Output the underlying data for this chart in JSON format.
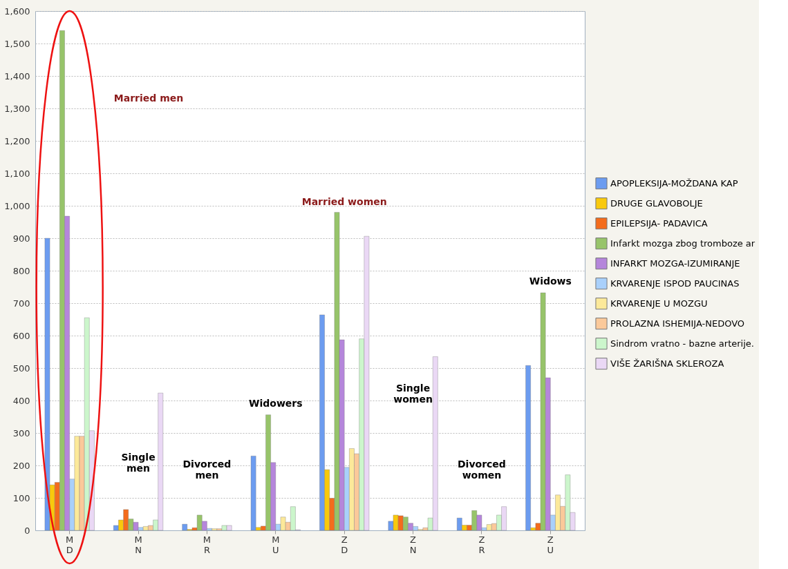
{
  "chart_data": {
    "type": "bar",
    "categories": [
      "M\nD",
      "M\nN",
      "M\nR",
      "M\nU",
      "Z\nD",
      "Z\nN",
      "Z\nR",
      "Z\nU"
    ],
    "series": [
      {
        "name": "APOPLEKSIJA-MOŽDANA  KAP",
        "color": "#6c9cf0",
        "values": [
          900,
          15,
          19,
          229,
          664,
          28,
          38,
          508
        ]
      },
      {
        "name": "DRUGE GLAVOBOLJE",
        "color": "#f9c90c",
        "values": [
          140,
          32,
          3,
          9,
          187,
          47,
          16,
          8
        ]
      },
      {
        "name": "EPILEPSIJA-  PADAVICA",
        "color": "#f46c1c",
        "values": [
          148,
          64,
          8,
          13,
          99,
          45,
          16,
          22
        ]
      },
      {
        "name": "Infarkt mozga zbog tromboze ar",
        "color": "#97c46a",
        "values": [
          1540,
          35,
          47,
          356,
          980,
          41,
          61,
          732
        ]
      },
      {
        "name": "INFARKT  MOZGA-IZUMIRANJE",
        "color": "#b586db",
        "values": [
          968,
          25,
          28,
          209,
          587,
          22,
          47,
          470
        ]
      },
      {
        "name": "KRVARENJE  ISPOD  PAUCINAS",
        "color": "#a9d0fb",
        "values": [
          158,
          9,
          6,
          19,
          194,
          12,
          8,
          47
        ]
      },
      {
        "name": "KRVARENJE U MOZGU",
        "color": "#fce99a",
        "values": [
          290,
          12,
          5,
          41,
          252,
          3,
          18,
          109
        ]
      },
      {
        "name": "PROLAZNA  ISHEMIJA-NEDOVO",
        "color": "#fbc99a",
        "values": [
          290,
          15,
          5,
          25,
          236,
          8,
          21,
          74
        ]
      },
      {
        "name": "Sindrom vratno - bazne arterije.",
        "color": "#ccf6cc",
        "values": [
          655,
          32,
          15,
          73,
          590,
          38,
          47,
          171
        ]
      },
      {
        "name": "VIŠE ŽARIŠNA SKLEROZA",
        "color": "#ead8f5",
        "values": [
          307,
          423,
          15,
          2,
          906,
          535,
          73,
          55
        ]
      }
    ],
    "ylim": [
      0,
      1600
    ],
    "yticks": [
      0,
      100,
      200,
      300,
      400,
      500,
      600,
      700,
      800,
      900,
      {
        "value": 1000,
        "label": "1,000"
      },
      {
        "value": 1100,
        "label": "1,100"
      },
      {
        "value": 1200,
        "label": "1,200"
      },
      {
        "value": 1300,
        "label": "1,300"
      },
      {
        "value": 1400,
        "label": "1,400"
      },
      {
        "value": 1500,
        "label": "1,500"
      },
      {
        "value": 1600,
        "label": "1,600"
      }
    ],
    "grid": "y",
    "legend": "right",
    "annotations": [
      "Married men",
      "Single\nmen",
      "Divorced\nmen",
      "Widowers",
      "Married women",
      "Single\nwomen",
      "Divorced\nwomen",
      "Widows"
    ]
  }
}
